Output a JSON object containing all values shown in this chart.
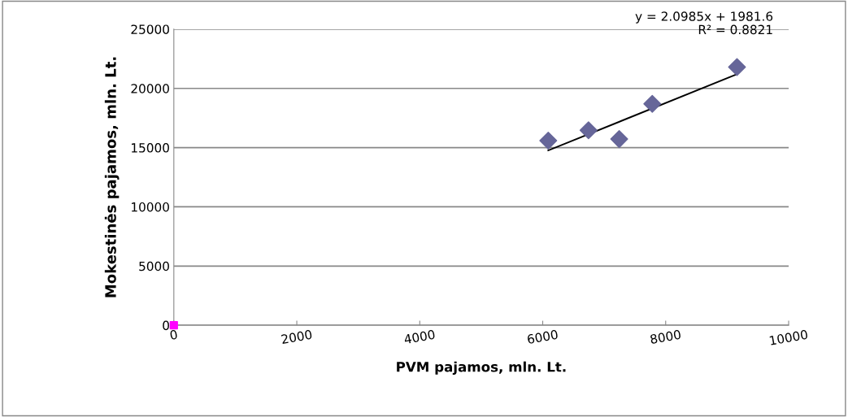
{
  "chart_data": {
    "type": "scatter",
    "xlabel": "PVM pajamos, mln. Lt.",
    "ylabel": "Mokestinės pajamos, mln. Lt.",
    "xlim": [
      0,
      10000
    ],
    "xticks": [
      0,
      2000,
      4000,
      6000,
      8000,
      10000
    ],
    "ylim": [
      0,
      25000
    ],
    "yticks": [
      0,
      5000,
      10000,
      15000,
      20000,
      25000
    ],
    "grid": "y",
    "marker": "diamond",
    "series": [
      {
        "color": "#666699",
        "x": [
          6090,
          6745,
          7244,
          7782,
          9160
        ],
        "values": [
          15590,
          16470,
          15720,
          18700,
          21800
        ]
      },
      {
        "color": "#ff00ff",
        "marker": "square",
        "x": [
          0
        ],
        "values": [
          0
        ]
      },
      {
        "type": "line",
        "color": "#000000",
        "marker": "none",
        "x": [
          6090,
          9160
        ],
        "values": [
          14760,
          21200
        ]
      }
    ],
    "annotations": [
      "y = 2.0985x + 1981.6",
      "R² = 0.8821"
    ]
  }
}
